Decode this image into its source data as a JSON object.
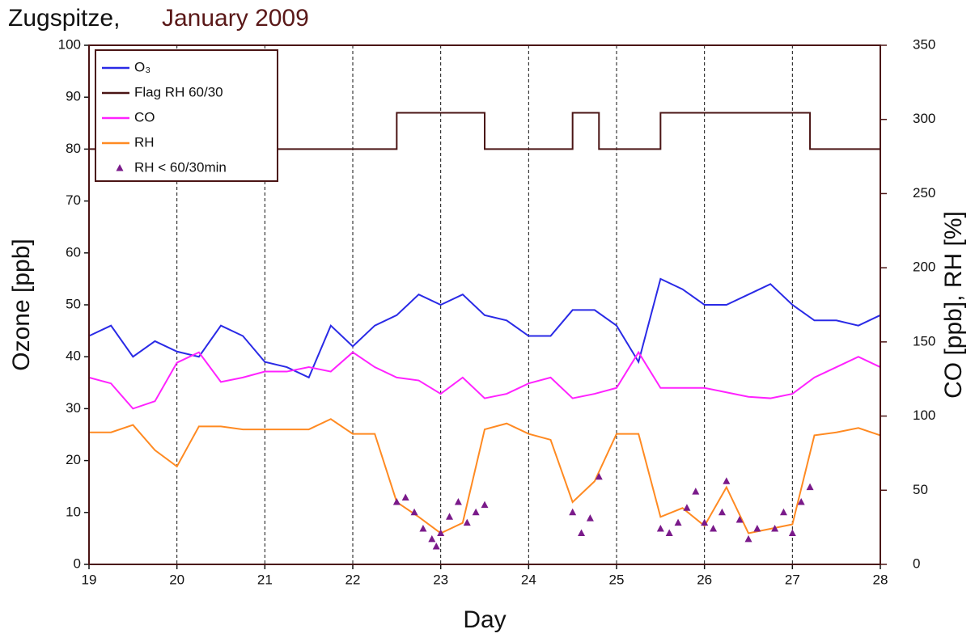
{
  "chart_data": {
    "type": "line",
    "title": "Zugspitze,",
    "subtitle": "January 2009",
    "x_label": "Day",
    "y_label": "Ozone [ppb]",
    "y2_label": "CO [ppb],  RH [%]",
    "xlim": [
      19,
      28
    ],
    "xticks": [
      19,
      20,
      21,
      22,
      23,
      24,
      25,
      26,
      27,
      28
    ],
    "ylim": [
      0,
      100
    ],
    "yticks": [
      0,
      10,
      20,
      30,
      40,
      50,
      60,
      70,
      80,
      90,
      100
    ],
    "y2lim": [
      0,
      350
    ],
    "y2ticks": [
      0,
      50,
      100,
      150,
      200,
      250,
      300,
      350
    ],
    "grid": true,
    "legend": "upper left",
    "x": [
      19,
      19.25,
      19.5,
      19.75,
      20,
      20.25,
      20.5,
      20.75,
      21,
      21.25,
      21.5,
      21.75,
      22,
      22.25,
      22.5,
      22.75,
      23,
      23.25,
      23.5,
      23.75,
      24,
      24.25,
      24.5,
      24.75,
      25,
      25.25,
      25.5,
      25.75,
      26,
      26.25,
      26.5,
      26.75,
      27,
      27.25,
      27.5,
      27.75,
      28
    ],
    "series": [
      {
        "name": "O₃",
        "type": "line",
        "color": "#2a2ae6",
        "values": [
          44,
          46,
          40,
          43,
          41,
          40,
          46,
          44,
          39,
          38,
          36,
          46,
          42,
          46,
          48,
          52,
          50,
          52,
          48,
          47,
          44,
          44,
          49,
          49,
          46,
          39,
          55,
          53,
          50,
          50,
          52,
          54,
          50,
          47,
          47,
          46,
          48
        ]
      },
      {
        "name": "Flag RH 60/30",
        "type": "line",
        "color": "#4a1414",
        "x": [
          19,
          22.5,
          22.5,
          23.5,
          23.5,
          24.5,
          24.5,
          24.8,
          24.8,
          25.5,
          25.5,
          27.2,
          27.2,
          28
        ],
        "values": [
          80,
          80,
          87,
          87,
          80,
          80,
          87,
          87,
          80,
          80,
          87,
          87,
          80,
          80
        ]
      },
      {
        "name": "CO",
        "type": "line",
        "color": "#ff22ff",
        "axis": "y2",
        "values": [
          126,
          122,
          105,
          110,
          136,
          143,
          123,
          126,
          130,
          130,
          133,
          130,
          143,
          133,
          126,
          124,
          115,
          126,
          112,
          115,
          122,
          126,
          112,
          115,
          119,
          143,
          119,
          119,
          119,
          116,
          113,
          112,
          115,
          126,
          133,
          140,
          133
        ]
      },
      {
        "name": "RH",
        "type": "line",
        "color": "#ff8a22",
        "axis": "y2",
        "values": [
          89,
          89,
          94,
          77,
          66,
          93,
          93,
          91,
          91,
          91,
          91,
          98,
          88,
          88,
          42,
          32,
          21,
          28,
          91,
          95,
          88,
          84,
          42,
          56,
          88,
          88,
          32,
          38,
          26,
          52,
          21,
          24,
          27,
          87,
          89,
          92,
          87
        ]
      },
      {
        "name": "RH < 60/30min",
        "type": "scatter",
        "color": "#7a1a8a",
        "axis": "y2",
        "x": [
          22.5,
          22.6,
          22.7,
          22.8,
          22.9,
          22.95,
          23.0,
          23.1,
          23.2,
          23.3,
          23.4,
          23.5,
          24.5,
          24.6,
          24.7,
          24.8,
          25.5,
          25.6,
          25.7,
          25.8,
          25.9,
          26.0,
          26.1,
          26.2,
          26.25,
          26.4,
          26.5,
          26.6,
          26.8,
          26.9,
          27.0,
          27.1,
          27.2
        ],
        "values": [
          42,
          45,
          35,
          24,
          17,
          12,
          21,
          32,
          42,
          28,
          35,
          40,
          35,
          21,
          31,
          59,
          24,
          21,
          28,
          38,
          49,
          28,
          24,
          35,
          56,
          30,
          17,
          24,
          24,
          35,
          21,
          42,
          52
        ]
      }
    ]
  }
}
